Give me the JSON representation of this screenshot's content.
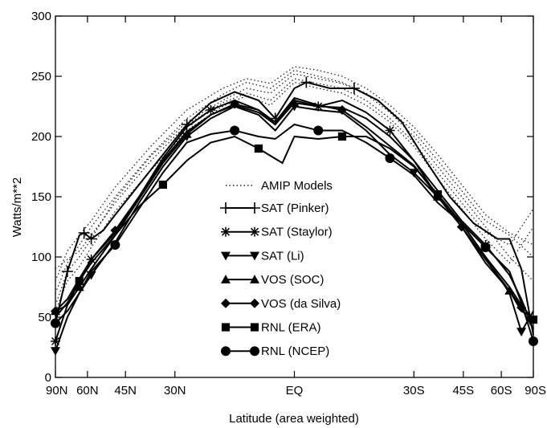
{
  "chart_data": {
    "type": "line",
    "xlabel": "Latitude (area weighted)",
    "ylabel": "Watts/m**2",
    "ylim": [
      0,
      300
    ],
    "xlim": [
      -1,
      1
    ],
    "grid": false,
    "legend_position": "center",
    "y_ticks": [
      0,
      50,
      100,
      150,
      200,
      250,
      300
    ],
    "x_ticks": [
      {
        "label": "90N",
        "s": -1.0
      },
      {
        "label": "60N",
        "s": -0.866
      },
      {
        "label": "45N",
        "s": -0.707
      },
      {
        "label": "30N",
        "s": -0.5
      },
      {
        "label": "EQ",
        "s": 0.0
      },
      {
        "label": "30S",
        "s": 0.5
      },
      {
        "label": "45S",
        "s": 0.707
      },
      {
        "label": "60S",
        "s": 0.866
      },
      {
        "label": "90S",
        "s": 1.0
      }
    ],
    "amip_models": {
      "name": "AMIP Models",
      "lines": [
        [
          [
            -1,
            70
          ],
          [
            -0.95,
            95
          ],
          [
            -0.9,
            110
          ],
          [
            -0.85,
            125
          ],
          [
            -0.75,
            150
          ],
          [
            -0.6,
            185
          ],
          [
            -0.45,
            215
          ],
          [
            -0.3,
            235
          ],
          [
            -0.2,
            245
          ],
          [
            -0.1,
            240
          ],
          [
            0,
            255
          ],
          [
            0.1,
            250
          ],
          [
            0.2,
            245
          ],
          [
            0.3,
            235
          ],
          [
            0.4,
            220
          ],
          [
            0.5,
            200
          ],
          [
            0.6,
            175
          ],
          [
            0.7,
            150
          ],
          [
            0.8,
            125
          ],
          [
            0.9,
            100
          ],
          [
            1.0,
            80
          ]
        ],
        [
          [
            -1,
            80
          ],
          [
            -0.95,
            105
          ],
          [
            -0.9,
            118
          ],
          [
            -0.85,
            130
          ],
          [
            -0.75,
            158
          ],
          [
            -0.6,
            192
          ],
          [
            -0.45,
            222
          ],
          [
            -0.3,
            240
          ],
          [
            -0.2,
            248
          ],
          [
            -0.1,
            244
          ],
          [
            0,
            258
          ],
          [
            0.1,
            255
          ],
          [
            0.2,
            250
          ],
          [
            0.3,
            240
          ],
          [
            0.4,
            226
          ],
          [
            0.5,
            208
          ],
          [
            0.6,
            185
          ],
          [
            0.7,
            160
          ],
          [
            0.8,
            135
          ],
          [
            0.9,
            120
          ],
          [
            1.0,
            110
          ]
        ],
        [
          [
            -1,
            90
          ],
          [
            -0.95,
            98
          ],
          [
            -0.9,
            105
          ],
          [
            -0.85,
            118
          ],
          [
            -0.75,
            145
          ],
          [
            -0.6,
            180
          ],
          [
            -0.45,
            210
          ],
          [
            -0.3,
            228
          ],
          [
            -0.2,
            236
          ],
          [
            -0.1,
            230
          ],
          [
            0,
            248
          ],
          [
            0.1,
            244
          ],
          [
            0.2,
            240
          ],
          [
            0.3,
            230
          ],
          [
            0.4,
            215
          ],
          [
            0.5,
            195
          ],
          [
            0.6,
            170
          ],
          [
            0.7,
            145
          ],
          [
            0.8,
            120
          ],
          [
            0.9,
            110
          ],
          [
            1.0,
            140
          ]
        ],
        [
          [
            -1,
            55
          ],
          [
            -0.95,
            80
          ],
          [
            -0.9,
            92
          ],
          [
            -0.85,
            108
          ],
          [
            -0.75,
            138
          ],
          [
            -0.6,
            172
          ],
          [
            -0.45,
            205
          ],
          [
            -0.3,
            225
          ],
          [
            -0.2,
            234
          ],
          [
            -0.1,
            226
          ],
          [
            0,
            245
          ],
          [
            0.1,
            240
          ],
          [
            0.2,
            236
          ],
          [
            0.3,
            226
          ],
          [
            0.4,
            212
          ],
          [
            0.5,
            192
          ],
          [
            0.6,
            165
          ],
          [
            0.7,
            140
          ],
          [
            0.8,
            115
          ],
          [
            0.9,
            95
          ],
          [
            1.0,
            125
          ]
        ],
        [
          [
            -1,
            60
          ],
          [
            -0.95,
            88
          ],
          [
            -0.9,
            100
          ],
          [
            -0.85,
            115
          ],
          [
            -0.75,
            148
          ],
          [
            -0.6,
            184
          ],
          [
            -0.45,
            212
          ],
          [
            -0.3,
            230
          ],
          [
            -0.2,
            240
          ],
          [
            -0.1,
            236
          ],
          [
            0,
            252
          ],
          [
            0.1,
            248
          ],
          [
            0.2,
            244
          ],
          [
            0.3,
            236
          ],
          [
            0.4,
            222
          ],
          [
            0.5,
            204
          ],
          [
            0.6,
            180
          ],
          [
            0.7,
            155
          ],
          [
            0.8,
            130
          ],
          [
            0.9,
            118
          ],
          [
            1.0,
            100
          ]
        ]
      ]
    },
    "series": [
      {
        "name": "SAT (Pinker)",
        "marker": "plus",
        "values": [
          [
            -1,
            45
          ],
          [
            -0.95,
            88
          ],
          [
            -0.9,
            118
          ],
          [
            -0.88,
            120
          ],
          [
            -0.85,
            115
          ],
          [
            -0.8,
            122
          ],
          [
            -0.75,
            135
          ],
          [
            -0.65,
            160
          ],
          [
            -0.55,
            185
          ],
          [
            -0.45,
            210
          ],
          [
            -0.35,
            228
          ],
          [
            -0.25,
            237
          ],
          [
            -0.15,
            230
          ],
          [
            -0.08,
            215
          ],
          [
            0,
            240
          ],
          [
            0.05,
            245
          ],
          [
            0.15,
            240
          ],
          [
            0.25,
            240
          ],
          [
            0.35,
            230
          ],
          [
            0.45,
            212
          ],
          [
            0.55,
            180
          ],
          [
            0.65,
            150
          ],
          [
            0.75,
            128
          ],
          [
            0.85,
            115
          ],
          [
            0.9,
            115
          ],
          [
            0.95,
            90
          ],
          [
            1.0,
            35
          ]
        ]
      },
      {
        "name": "SAT (Staylor)",
        "marker": "asterisk",
        "values": [
          [
            -1,
            30
          ],
          [
            -0.95,
            60
          ],
          [
            -0.9,
            80
          ],
          [
            -0.85,
            98
          ],
          [
            -0.75,
            120
          ],
          [
            -0.65,
            150
          ],
          [
            -0.55,
            182
          ],
          [
            -0.45,
            208
          ],
          [
            -0.35,
            222
          ],
          [
            -0.25,
            230
          ],
          [
            -0.15,
            222
          ],
          [
            -0.08,
            210
          ],
          [
            0,
            230
          ],
          [
            0.1,
            225
          ],
          [
            0.2,
            230
          ],
          [
            0.3,
            220
          ],
          [
            0.4,
            205
          ],
          [
            0.5,
            180
          ],
          [
            0.6,
            155
          ],
          [
            0.7,
            130
          ],
          [
            0.8,
            110
          ],
          [
            0.9,
            85
          ],
          [
            0.95,
            65
          ],
          [
            1.0,
            40
          ]
        ]
      },
      {
        "name": "SAT (Li)",
        "marker": "triangle-down",
        "values": [
          [
            -1,
            22
          ],
          [
            -0.95,
            50
          ],
          [
            -0.9,
            70
          ],
          [
            -0.85,
            85
          ],
          [
            -0.75,
            112
          ],
          [
            -0.65,
            145
          ],
          [
            -0.55,
            175
          ],
          [
            -0.45,
            200
          ],
          [
            -0.35,
            215
          ],
          [
            -0.25,
            225
          ],
          [
            -0.15,
            218
          ],
          [
            -0.08,
            205
          ],
          [
            0,
            225
          ],
          [
            0.1,
            222
          ],
          [
            0.2,
            220
          ],
          [
            0.3,
            205
          ],
          [
            0.4,
            185
          ],
          [
            0.5,
            170
          ],
          [
            0.6,
            150
          ],
          [
            0.7,
            128
          ],
          [
            0.8,
            100
          ],
          [
            0.9,
            70
          ],
          [
            0.95,
            38
          ],
          [
            1.0,
            55
          ]
        ]
      },
      {
        "name": "VOS (SOC)",
        "marker": "triangle-up",
        "values": [
          [
            -1,
            55
          ],
          [
            -0.95,
            60
          ],
          [
            -0.9,
            75
          ],
          [
            -0.85,
            90
          ],
          [
            -0.75,
            118
          ],
          [
            -0.65,
            148
          ],
          [
            -0.55,
            178
          ],
          [
            -0.45,
            202
          ],
          [
            -0.35,
            218
          ],
          [
            -0.25,
            226
          ],
          [
            -0.15,
            220
          ],
          [
            -0.08,
            210
          ],
          [
            0,
            228
          ],
          [
            0.1,
            225
          ],
          [
            0.2,
            224
          ],
          [
            0.3,
            215
          ],
          [
            0.4,
            200
          ],
          [
            0.5,
            180
          ],
          [
            0.6,
            150
          ],
          [
            0.7,
            125
          ],
          [
            0.8,
            95
          ],
          [
            0.9,
            72
          ],
          [
            0.95,
            55
          ],
          [
            1.0,
            50
          ]
        ]
      },
      {
        "name": "VOS (da Silva)",
        "marker": "diamond",
        "values": [
          [
            -1,
            55
          ],
          [
            -0.95,
            65
          ],
          [
            -0.9,
            82
          ],
          [
            -0.85,
            98
          ],
          [
            -0.75,
            122
          ],
          [
            -0.65,
            150
          ],
          [
            -0.55,
            180
          ],
          [
            -0.45,
            204
          ],
          [
            -0.35,
            218
          ],
          [
            -0.25,
            227
          ],
          [
            -0.15,
            222
          ],
          [
            -0.08,
            212
          ],
          [
            0,
            232
          ],
          [
            0.1,
            226
          ],
          [
            0.2,
            222
          ],
          [
            0.3,
            208
          ],
          [
            0.4,
            192
          ],
          [
            0.5,
            176
          ],
          [
            0.6,
            150
          ],
          [
            0.7,
            125
          ],
          [
            0.8,
            98
          ],
          [
            0.9,
            72
          ],
          [
            0.95,
            58
          ],
          [
            1.0,
            40
          ]
        ]
      },
      {
        "name": "RNL (ERA)",
        "marker": "square",
        "values": [
          [
            -1,
            50
          ],
          [
            -0.95,
            62
          ],
          [
            -0.9,
            80
          ],
          [
            -0.85,
            95
          ],
          [
            -0.75,
            118
          ],
          [
            -0.65,
            142
          ],
          [
            -0.55,
            160
          ],
          [
            -0.45,
            180
          ],
          [
            -0.35,
            195
          ],
          [
            -0.25,
            200
          ],
          [
            -0.15,
            190
          ],
          [
            -0.05,
            178
          ],
          [
            0,
            200
          ],
          [
            0.1,
            198
          ],
          [
            0.2,
            200
          ],
          [
            0.3,
            200
          ],
          [
            0.4,
            190
          ],
          [
            0.5,
            175
          ],
          [
            0.6,
            152
          ],
          [
            0.7,
            128
          ],
          [
            0.8,
            100
          ],
          [
            0.9,
            75
          ],
          [
            0.95,
            60
          ],
          [
            1.0,
            48
          ]
        ]
      },
      {
        "name": "RNL (NCEP)",
        "marker": "circle",
        "values": [
          [
            -1,
            45
          ],
          [
            -0.95,
            55
          ],
          [
            -0.9,
            70
          ],
          [
            -0.85,
            88
          ],
          [
            -0.75,
            110
          ],
          [
            -0.65,
            140
          ],
          [
            -0.55,
            170
          ],
          [
            -0.45,
            195
          ],
          [
            -0.35,
            202
          ],
          [
            -0.25,
            205
          ],
          [
            -0.15,
            200
          ],
          [
            -0.08,
            198
          ],
          [
            0,
            210
          ],
          [
            0.1,
            205
          ],
          [
            0.2,
            205
          ],
          [
            0.3,
            195
          ],
          [
            0.4,
            182
          ],
          [
            0.5,
            168
          ],
          [
            0.6,
            145
          ],
          [
            0.7,
            128
          ],
          [
            0.8,
            108
          ],
          [
            0.9,
            88
          ],
          [
            0.95,
            62
          ],
          [
            1.0,
            30
          ]
        ]
      }
    ]
  }
}
